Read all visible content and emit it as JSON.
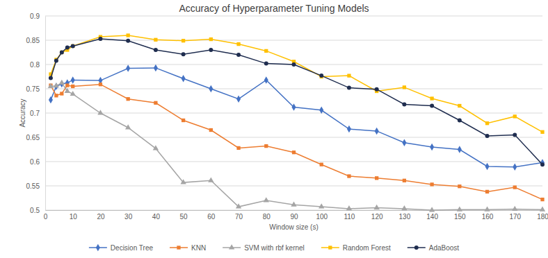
{
  "chart_data": {
    "type": "line",
    "title": "Accuracy of Hyperparameter Tuning Models",
    "x_label": "Window size (s)",
    "y_label": "Accuracy",
    "x": [
      2,
      4,
      6,
      8,
      10,
      20,
      30,
      40,
      50,
      60,
      70,
      80,
      90,
      100,
      110,
      120,
      130,
      140,
      150,
      160,
      170,
      180
    ],
    "xlim": [
      0,
      180
    ],
    "xticks": [
      0,
      10,
      20,
      30,
      40,
      50,
      60,
      70,
      80,
      90,
      100,
      110,
      120,
      130,
      140,
      150,
      160,
      170,
      180
    ],
    "ylim": [
      0.5,
      0.9
    ],
    "yticks": [
      0.5,
      0.55,
      0.6,
      0.65,
      0.7,
      0.75,
      0.8,
      0.85,
      0.9
    ],
    "grid": true,
    "legend": "bottom",
    "series": [
      {
        "name": "Decision Tree",
        "color": "#4472c4",
        "marker": "diamond",
        "values": [
          0.727,
          0.755,
          0.76,
          0.762,
          0.768,
          0.767,
          0.792,
          0.793,
          0.771,
          0.75,
          0.729,
          0.768,
          0.712,
          0.706,
          0.667,
          0.663,
          0.639,
          0.63,
          0.625,
          0.59,
          0.589,
          0.598
        ]
      },
      {
        "name": "KNN",
        "color": "#ed7d31",
        "marker": "square",
        "values": [
          0.757,
          0.736,
          0.74,
          0.757,
          0.755,
          0.759,
          0.729,
          0.721,
          0.685,
          0.665,
          0.628,
          0.632,
          0.619,
          0.594,
          0.57,
          0.566,
          0.561,
          0.553,
          0.549,
          0.538,
          0.547,
          0.522
        ]
      },
      {
        "name": "SVM with rbf kernel",
        "color": "#a5a5a5",
        "marker": "triangle",
        "values": [
          0.755,
          0.756,
          0.762,
          0.745,
          0.739,
          0.7,
          0.67,
          0.627,
          0.557,
          0.561,
          0.507,
          0.52,
          0.511,
          0.507,
          0.503,
          0.505,
          0.503,
          0.5,
          0.501,
          0.501,
          0.502,
          0.501
        ]
      },
      {
        "name": "Random Forest",
        "color": "#ffc000",
        "marker": "square",
        "values": [
          0.78,
          0.81,
          0.825,
          0.83,
          0.838,
          0.857,
          0.86,
          0.851,
          0.849,
          0.852,
          0.842,
          0.828,
          0.806,
          0.775,
          0.777,
          0.745,
          0.753,
          0.73,
          0.715,
          0.679,
          0.693,
          0.661
        ]
      },
      {
        "name": "AdaBoost",
        "color": "#1f2d4f",
        "marker": "circle",
        "values": [
          0.772,
          0.808,
          0.825,
          0.835,
          0.838,
          0.853,
          0.849,
          0.83,
          0.821,
          0.83,
          0.82,
          0.802,
          0.8,
          0.777,
          0.752,
          0.749,
          0.718,
          0.715,
          0.685,
          0.653,
          0.655,
          0.594
        ]
      }
    ]
  }
}
